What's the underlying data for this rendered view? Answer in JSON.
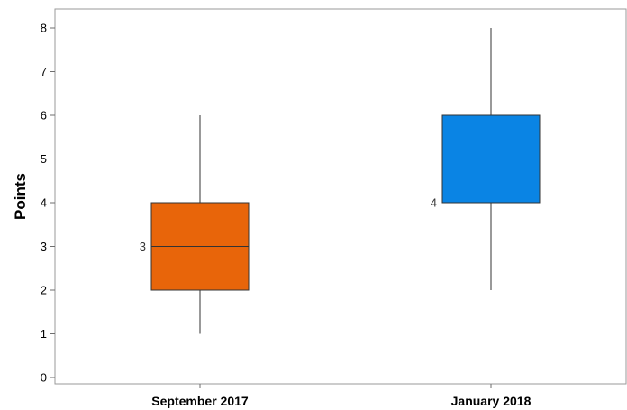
{
  "chart_data": {
    "type": "box",
    "ylabel": "Points",
    "xlabel": "",
    "ylim": [
      0,
      8
    ],
    "yticks": [
      "0",
      "1",
      "2",
      "3",
      "4",
      "5",
      "6",
      "7",
      "8"
    ],
    "grid": false,
    "categories": [
      "September 2017",
      "January 2018"
    ],
    "boxes": [
      {
        "category": "September 2017",
        "min": 1,
        "q1": 2,
        "median": 3,
        "q3": 4,
        "max": 6,
        "median_label": "3",
        "color": "#e8650a"
      },
      {
        "category": "January 2018",
        "min": 2,
        "q1": 4,
        "median": 4,
        "q3": 6,
        "max": 8,
        "median_label": "4",
        "color": "#0a84e4"
      }
    ]
  }
}
